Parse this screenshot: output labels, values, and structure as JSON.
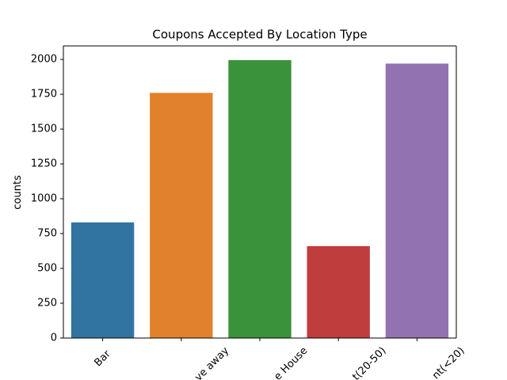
{
  "chart_data": {
    "type": "bar",
    "title": "Coupons Accepted By Location Type",
    "ylabel": "counts",
    "categories": [
      "Bar",
      "ve away",
      "e House",
      "t(20-50)",
      "nt(<20)"
    ],
    "values": [
      830,
      1760,
      1995,
      660,
      1970
    ],
    "colors": [
      "#3274a1",
      "#e1812c",
      "#3a923a",
      "#c03d3e",
      "#9372b2"
    ],
    "ylim": [
      0,
      2097
    ],
    "yticks": [
      0,
      250,
      500,
      750,
      1000,
      1250,
      1500,
      1750,
      2000
    ],
    "grid": false
  }
}
